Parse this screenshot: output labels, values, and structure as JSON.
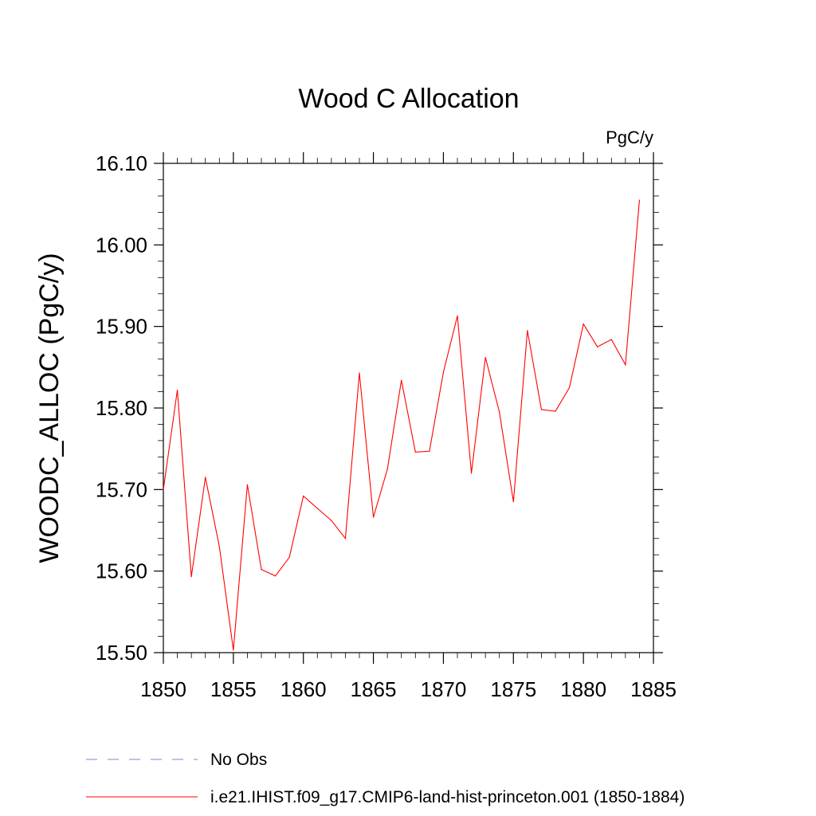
{
  "chart_data": {
    "type": "line",
    "title": "Wood C Allocation",
    "units_label": "PgC/y",
    "ylabel": "WOODC_ALLOC  (PgC/y)",
    "xlabel": "",
    "xlim": [
      1850,
      1885
    ],
    "ylim": [
      15.5,
      16.1
    ],
    "x_ticks": [
      1850,
      1855,
      1860,
      1865,
      1870,
      1875,
      1880,
      1885
    ],
    "y_ticks": [
      "15.50",
      "15.60",
      "15.70",
      "15.80",
      "15.90",
      "16.00",
      "16.10"
    ],
    "grid": false,
    "legend_position": "bottom",
    "series": [
      {
        "name": "i.e21.IHIST.f09_g17.CMIP6-land-hist-princeton.001 (1850-1884)",
        "color": "#ff0000",
        "style": "solid",
        "x": [
          1850,
          1851,
          1852,
          1853,
          1854,
          1855,
          1856,
          1857,
          1858,
          1859,
          1860,
          1861,
          1862,
          1863,
          1864,
          1865,
          1866,
          1867,
          1868,
          1869,
          1870,
          1871,
          1872,
          1873,
          1874,
          1875,
          1876,
          1877,
          1878,
          1879,
          1880,
          1881,
          1882,
          1883,
          1884
        ],
        "values": [
          15.7,
          15.822,
          15.593,
          15.715,
          15.63,
          15.503,
          15.706,
          15.602,
          15.594,
          15.617,
          15.692,
          15.677,
          15.662,
          15.64,
          15.843,
          15.666,
          15.725,
          15.834,
          15.746,
          15.747,
          15.844,
          15.913,
          15.72,
          15.862,
          15.795,
          15.685,
          15.895,
          15.798,
          15.796,
          15.825,
          15.903,
          15.875,
          15.884,
          15.853,
          16.055
        ]
      }
    ],
    "legend": [
      {
        "label": "No Obs",
        "color": "#8c7fc4",
        "style": "dashed"
      },
      {
        "label": "i.e21.IHIST.f09_g17.CMIP6-land-hist-princeton.001 (1850-1884)",
        "color": "#ff0000",
        "style": "solid"
      }
    ]
  }
}
